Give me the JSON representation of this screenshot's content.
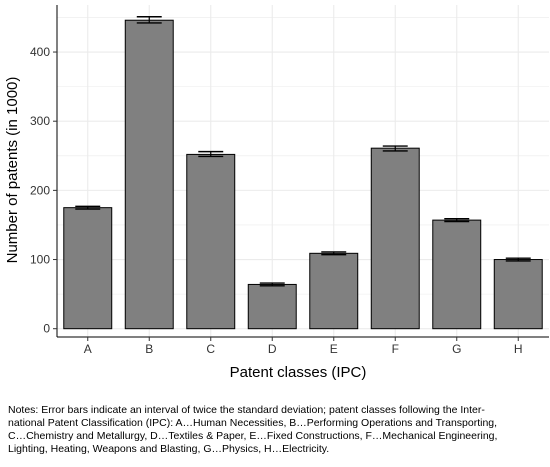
{
  "chart_data": {
    "type": "bar",
    "categories": [
      "A",
      "B",
      "C",
      "D",
      "E",
      "F",
      "G",
      "H"
    ],
    "values": [
      175,
      446,
      252,
      64,
      109,
      261,
      157,
      100
    ],
    "error_lower": [
      173,
      442,
      249,
      62,
      107,
      257,
      155,
      98
    ],
    "error_upper": [
      177,
      451,
      256,
      66,
      111,
      264,
      159,
      102
    ],
    "xlabel": "Patent classes (IPC)",
    "ylabel": "Number of patents (in 1000)",
    "ylim": [
      -12,
      468
    ],
    "yticks": [
      0,
      100,
      200,
      300,
      400
    ],
    "grid": true,
    "bar_color": "#808080",
    "bar_edge_color": "#000000",
    "grid_color": "#ebebeb"
  },
  "notes": {
    "lines": [
      "Notes: Error bars indicate an interval of twice the standard deviation; patent classes following the Inter-",
      "national Patent Classification (IPC): A…Human Necessities, B…Performing Operations and Transporting,",
      "C…Chemistry and Metallurgy, D…Textiles & Paper, E…Fixed Constructions, F…Mechanical Engineering,",
      "Lighting, Heating, Weapons and Blasting, G…Physics, H…Electricity."
    ]
  }
}
